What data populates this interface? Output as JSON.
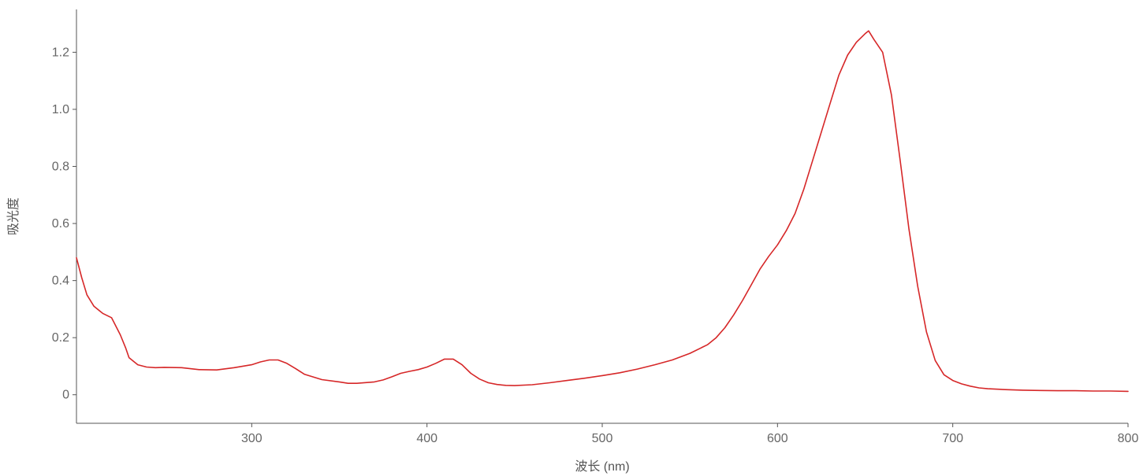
{
  "chart_data": {
    "type": "line",
    "xlabel": "波长 (nm)",
    "ylabel": "吸光度",
    "xlim": [
      200,
      800
    ],
    "ylim": [
      -0.1,
      1.35
    ],
    "x_ticks": [
      300,
      400,
      500,
      600,
      700,
      800
    ],
    "x_tick_labels": [
      "300",
      "400",
      "500",
      "600",
      "700",
      "800"
    ],
    "y_ticks": [
      0,
      0.2,
      0.4,
      0.6,
      0.8,
      1.0,
      1.2
    ],
    "y_tick_labels": [
      "0",
      "0.2",
      "0.4",
      "0.6",
      "0.8",
      "1.0",
      "1.2"
    ],
    "grid": false,
    "colors": {
      "series": "#d62728",
      "axis": "#555555",
      "text": "#666666"
    },
    "series": [
      {
        "x": [
          200,
          203,
          206,
          210,
          215,
          220,
          225,
          228,
          230,
          235,
          240,
          245,
          250,
          260,
          270,
          280,
          290,
          300,
          305,
          310,
          315,
          320,
          325,
          330,
          340,
          350,
          355,
          360,
          370,
          375,
          380,
          385,
          390,
          395,
          400,
          405,
          410,
          415,
          420,
          425,
          430,
          435,
          440,
          445,
          450,
          460,
          470,
          480,
          490,
          500,
          510,
          520,
          530,
          540,
          550,
          560,
          565,
          570,
          575,
          580,
          585,
          590,
          595,
          600,
          605,
          610,
          615,
          620,
          625,
          630,
          635,
          640,
          645,
          650,
          652,
          655,
          660,
          665,
          670,
          675,
          680,
          685,
          690,
          695,
          700,
          705,
          710,
          715,
          720,
          730,
          740,
          750,
          760,
          770,
          780,
          790,
          800
        ],
        "y": [
          0.48,
          0.41,
          0.35,
          0.31,
          0.285,
          0.27,
          0.21,
          0.165,
          0.13,
          0.105,
          0.097,
          0.095,
          0.096,
          0.095,
          0.088,
          0.087,
          0.095,
          0.105,
          0.115,
          0.122,
          0.122,
          0.11,
          0.092,
          0.072,
          0.053,
          0.045,
          0.04,
          0.04,
          0.045,
          0.052,
          0.063,
          0.075,
          0.082,
          0.088,
          0.097,
          0.11,
          0.125,
          0.125,
          0.105,
          0.075,
          0.055,
          0.042,
          0.036,
          0.033,
          0.032,
          0.035,
          0.042,
          0.05,
          0.058,
          0.067,
          0.077,
          0.09,
          0.105,
          0.122,
          0.145,
          0.175,
          0.2,
          0.235,
          0.28,
          0.33,
          0.385,
          0.44,
          0.485,
          0.525,
          0.575,
          0.635,
          0.72,
          0.82,
          0.92,
          1.02,
          1.12,
          1.19,
          1.235,
          1.265,
          1.275,
          1.245,
          1.2,
          1.05,
          0.82,
          0.58,
          0.38,
          0.22,
          0.12,
          0.07,
          0.05,
          0.038,
          0.03,
          0.024,
          0.021,
          0.018,
          0.016,
          0.015,
          0.014,
          0.014,
          0.013,
          0.013,
          0.012
        ]
      }
    ]
  }
}
